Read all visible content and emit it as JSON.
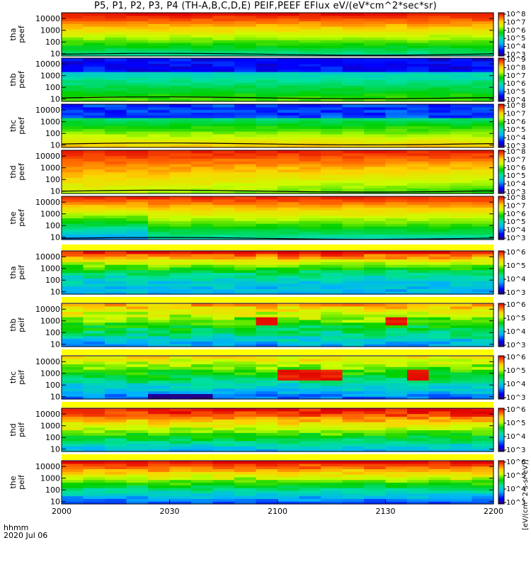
{
  "title": "P5, P1, P2, P3, P4 (TH-A,B,C,D,E) PEIF,PEEF EFlux eV/(eV*cm^2*sec*sr)",
  "footer": {
    "time_label": "hhmm",
    "date_label": "2020 Jul 06"
  },
  "colorbar_label": "[eV/(cm^2-s-sr-eV)]",
  "chart_data": [
    {
      "type": "heatmap",
      "group": "electron",
      "panels": [
        {
          "label_line1": "tha",
          "label_line2": "peef",
          "zlim": [
            3,
            8
          ],
          "cb_ticks": [
            "10^3",
            "10^4",
            "10^5",
            "10^6",
            "10^7",
            "10^8"
          ]
        },
        {
          "label_line1": "thb",
          "label_line2": "peef",
          "zlim": [
            3,
            9
          ],
          "cb_ticks": [
            "10^4",
            "10^5",
            "10^6",
            "10^7",
            "10^8",
            "10^9"
          ]
        },
        {
          "label_line1": "thc",
          "label_line2": "peef",
          "zlim": [
            3,
            9
          ],
          "cb_ticks": [
            "10^3",
            "10^4",
            "10^5",
            "10^6",
            "10^7",
            "10^8"
          ]
        },
        {
          "label_line1": "thd",
          "label_line2": "peef",
          "zlim": [
            3,
            8
          ],
          "cb_ticks": [
            "10^3",
            "10^4",
            "10^5",
            "10^6",
            "10^7",
            "10^8"
          ]
        },
        {
          "label_line1": "the",
          "label_line2": "peef",
          "zlim": [
            3,
            8
          ],
          "cb_ticks": [
            "10^3",
            "10^4",
            "10^5",
            "10^6",
            "10^7",
            "10^8"
          ]
        }
      ]
    },
    {
      "type": "heatmap",
      "group": "ion",
      "panels": [
        {
          "label_line1": "tha",
          "label_line2": "peif",
          "zlim": [
            3,
            6
          ],
          "cb_ticks": [
            "10^3",
            "10^4",
            "10^5",
            "10^6"
          ]
        },
        {
          "label_line1": "thb",
          "label_line2": "peif",
          "zlim": [
            3,
            6
          ],
          "cb_ticks": [
            "10^3",
            "10^4",
            "10^5",
            "10^6"
          ]
        },
        {
          "label_line1": "thc",
          "label_line2": "peif",
          "zlim": [
            3,
            6
          ],
          "cb_ticks": [
            "10^3",
            "10^4",
            "10^5",
            "10^6"
          ]
        },
        {
          "label_line1": "thd",
          "label_line2": "peif",
          "zlim": [
            3,
            6
          ],
          "cb_ticks": [
            "10^3",
            "10^4",
            "10^5",
            "10^6"
          ]
        },
        {
          "label_line1": "the",
          "label_line2": "peif",
          "zlim": [
            3,
            6
          ],
          "cb_ticks": [
            "10^3",
            "10^4",
            "10^5",
            "10^6"
          ]
        }
      ]
    }
  ],
  "axes": {
    "x_ticks": [
      "2000",
      "2030",
      "2100",
      "2130",
      "2200"
    ],
    "y_ticks": [
      "10000",
      "1000",
      "100",
      "10"
    ],
    "y_log_range": [
      0.8,
      4.5
    ]
  }
}
